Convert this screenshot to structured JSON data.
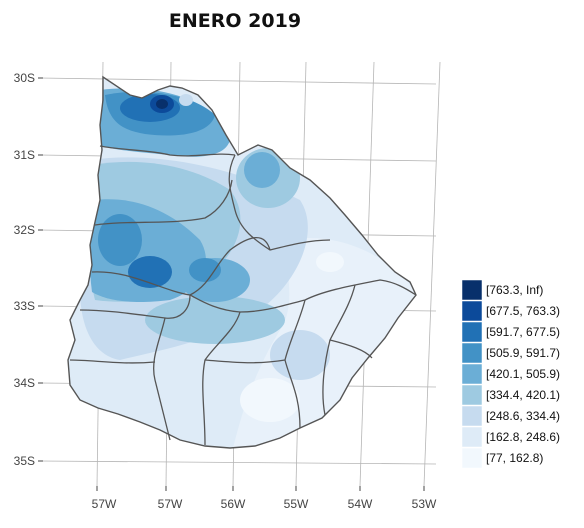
{
  "title": "ENERO  2019",
  "axes": {
    "lat_labels": [
      "30S",
      "31S",
      "32S",
      "33S",
      "34S",
      "35S"
    ],
    "lon_labels": [
      "57W",
      "57W",
      "56W",
      "55W",
      "54W",
      "53W"
    ]
  },
  "legend": {
    "classes": [
      {
        "label": "[763.3, Inf)",
        "color": "#08306b"
      },
      {
        "label": "[677.5, 763.3)",
        "color": "#0c4a9a"
      },
      {
        "label": "[591.7, 677.5)",
        "color": "#2171b5"
      },
      {
        "label": "[505.9, 591.7)",
        "color": "#4292c6"
      },
      {
        "label": "[420.1, 505.9)",
        "color": "#6baed6"
      },
      {
        "label": "[334.4, 420.1)",
        "color": "#9ecae1"
      },
      {
        "label": "[248.6, 334.4)",
        "color": "#c6dbef"
      },
      {
        "label": "[162.8, 248.6)",
        "color": "#deebf7"
      },
      {
        "label": "[77, 162.8)",
        "color": "#f2f8fd"
      }
    ]
  }
}
